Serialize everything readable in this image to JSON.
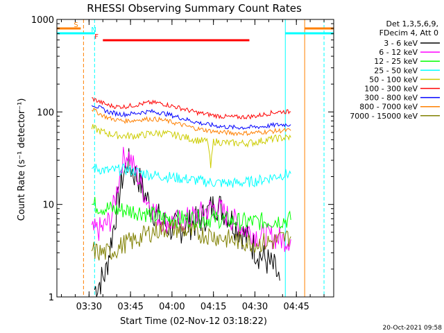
{
  "chart_data": {
    "type": "line",
    "title": "RHESSI Observing Summary Count Rates",
    "xlabel": "Start Time (02-Nov-12 03:18:22)",
    "ylabel": "Count Rate (s⁻¹ detector⁻¹)",
    "yscale": "log",
    "ylim": [
      1,
      1000
    ],
    "xlim": [
      "03:18:22",
      "04:58:30"
    ],
    "xticks": [
      "03:30",
      "03:45",
      "04:00",
      "04:15",
      "04:30",
      "04:45"
    ],
    "yticks": [
      "1",
      "10",
      "100",
      "1000"
    ],
    "legend_header": [
      "Det 1,3,5,6,9,",
      "FDecim 4, Att 0"
    ],
    "legend_position": "right",
    "grid": false,
    "series": [
      {
        "name": "3 - 6 keV",
        "color": "#000000",
        "points": [
          [
            "03:32",
            1.2
          ],
          [
            "03:36",
            1.8
          ],
          [
            "03:39",
            6
          ],
          [
            "03:42",
            19
          ],
          [
            "03:44",
            29
          ],
          [
            "03:46",
            22
          ],
          [
            "03:48",
            19
          ],
          [
            "03:50",
            13
          ],
          [
            "03:52",
            10
          ],
          [
            "03:54",
            8
          ],
          [
            "03:56",
            6.5
          ],
          [
            "03:58",
            6
          ],
          [
            "04:00",
            5.5
          ],
          [
            "04:03",
            5.5
          ],
          [
            "04:06",
            6
          ],
          [
            "04:09",
            6.5
          ],
          [
            "04:12",
            7.5
          ],
          [
            "04:14",
            9
          ],
          [
            "04:16",
            10
          ],
          [
            "04:18",
            9
          ],
          [
            "04:20",
            8
          ],
          [
            "04:22",
            6.5
          ],
          [
            "04:25",
            5
          ],
          [
            "04:28",
            4
          ],
          [
            "04:31",
            3
          ],
          [
            "04:34",
            2.5
          ],
          [
            "04:37",
            2
          ],
          [
            "04:39",
            1.5
          ]
        ]
      },
      {
        "name": "6 - 12 keV",
        "color": "#ff00ff",
        "points": [
          [
            "03:31",
            5
          ],
          [
            "03:35",
            5.5
          ],
          [
            "03:38",
            7
          ],
          [
            "03:40",
            14
          ],
          [
            "03:42",
            30
          ],
          [
            "03:44",
            36
          ],
          [
            "03:46",
            26
          ],
          [
            "03:48",
            19
          ],
          [
            "03:50",
            13
          ],
          [
            "03:52",
            10
          ],
          [
            "03:54",
            8
          ],
          [
            "03:56",
            7
          ],
          [
            "03:58",
            6.5
          ],
          [
            "04:00",
            6.5
          ],
          [
            "04:03",
            6.5
          ],
          [
            "04:06",
            7
          ],
          [
            "04:09",
            7.5
          ],
          [
            "04:12",
            8.5
          ],
          [
            "04:14",
            9
          ],
          [
            "04:16",
            9.5
          ],
          [
            "04:18",
            8.5
          ],
          [
            "04:20",
            7.5
          ],
          [
            "04:23",
            6.5
          ],
          [
            "04:26",
            5.5
          ],
          [
            "04:29",
            5
          ],
          [
            "04:32",
            4.5
          ],
          [
            "04:36",
            4.5
          ],
          [
            "04:40",
            4.2
          ],
          [
            "04:43",
            4.2
          ]
        ]
      },
      {
        "name": "12 - 25 keV",
        "color": "#00ff00",
        "points": [
          [
            "03:31",
            10
          ],
          [
            "03:34",
            9.5
          ],
          [
            "03:37",
            9
          ],
          [
            "03:40",
            8.7
          ],
          [
            "03:43",
            8.7
          ],
          [
            "03:46",
            8.5
          ],
          [
            "03:49",
            8.3
          ],
          [
            "03:52",
            7.8
          ],
          [
            "03:55",
            7.3
          ],
          [
            "03:58",
            7
          ],
          [
            "04:01",
            7
          ],
          [
            "04:04",
            7
          ],
          [
            "04:07",
            7
          ],
          [
            "04:10",
            7
          ],
          [
            "04:13",
            7
          ],
          [
            "04:16",
            7
          ],
          [
            "04:19",
            6.8
          ],
          [
            "04:22",
            6.6
          ],
          [
            "04:25",
            6.5
          ],
          [
            "04:28",
            6.5
          ],
          [
            "04:31",
            6.5
          ],
          [
            "04:34",
            6.6
          ],
          [
            "04:37",
            6.7
          ],
          [
            "04:40",
            6.8
          ],
          [
            "04:43",
            6.8
          ]
        ]
      },
      {
        "name": "25 - 50 keV",
        "color": "#00ffff",
        "points": [
          [
            "03:31",
            25
          ],
          [
            "03:34",
            24
          ],
          [
            "03:37",
            23
          ],
          [
            "03:40",
            23.5
          ],
          [
            "03:43",
            24
          ],
          [
            "03:46",
            23
          ],
          [
            "03:49",
            22
          ],
          [
            "03:52",
            21
          ],
          [
            "03:55",
            20.5
          ],
          [
            "03:58",
            20
          ],
          [
            "04:01",
            19.5
          ],
          [
            "04:04",
            19
          ],
          [
            "04:07",
            18.5
          ],
          [
            "04:10",
            18
          ],
          [
            "04:13",
            17.5
          ],
          [
            "04:16",
            17.2
          ],
          [
            "04:19",
            17
          ],
          [
            "04:22",
            17
          ],
          [
            "04:25",
            17.2
          ],
          [
            "04:28",
            17.5
          ],
          [
            "04:31",
            18
          ],
          [
            "04:34",
            19
          ],
          [
            "04:37",
            20
          ],
          [
            "04:40",
            21
          ],
          [
            "04:43",
            21.5
          ]
        ]
      },
      {
        "name": "50 - 100 keV",
        "color": "#cccc00",
        "points": [
          [
            "03:31",
            68
          ],
          [
            "03:34",
            62
          ],
          [
            "03:37",
            58
          ],
          [
            "03:40",
            56
          ],
          [
            "03:43",
            55
          ],
          [
            "03:46",
            55
          ],
          [
            "03:49",
            56
          ],
          [
            "03:52",
            58
          ],
          [
            "03:55",
            59
          ],
          [
            "03:58",
            58
          ],
          [
            "04:01",
            56
          ],
          [
            "04:04",
            54
          ],
          [
            "04:07",
            51
          ],
          [
            "04:10",
            49
          ],
          [
            "04:13",
            48
          ],
          [
            "04:14",
            25
          ],
          [
            "04:15",
            48
          ],
          [
            "04:18",
            47
          ],
          [
            "04:21",
            46
          ],
          [
            "04:24",
            46
          ],
          [
            "04:27",
            46
          ],
          [
            "04:30",
            47
          ],
          [
            "04:33",
            49
          ],
          [
            "04:36",
            51
          ],
          [
            "04:39",
            52
          ],
          [
            "04:43",
            53
          ]
        ]
      },
      {
        "name": "100 - 300 keV",
        "color": "#ff0000",
        "points": [
          [
            "03:31",
            140
          ],
          [
            "03:34",
            128
          ],
          [
            "03:37",
            118
          ],
          [
            "03:40",
            114
          ],
          [
            "03:43",
            114
          ],
          [
            "03:46",
            118
          ],
          [
            "03:49",
            122
          ],
          [
            "03:52",
            126
          ],
          [
            "03:55",
            125
          ],
          [
            "03:58",
            120
          ],
          [
            "04:01",
            114
          ],
          [
            "04:04",
            108
          ],
          [
            "04:07",
            102
          ],
          [
            "04:10",
            97
          ],
          [
            "04:13",
            94
          ],
          [
            "04:16",
            91
          ],
          [
            "04:19",
            89
          ],
          [
            "04:22",
            88
          ],
          [
            "04:25",
            88
          ],
          [
            "04:28",
            89
          ],
          [
            "04:31",
            91
          ],
          [
            "04:34",
            95
          ],
          [
            "04:37",
            99
          ],
          [
            "04:40",
            101
          ],
          [
            "04:43",
            100
          ]
        ]
      },
      {
        "name": "300 - 800 keV",
        "color": "#0000ff",
        "points": [
          [
            "03:31",
            122
          ],
          [
            "03:34",
            110
          ],
          [
            "03:37",
            100
          ],
          [
            "03:40",
            96
          ],
          [
            "03:43",
            94
          ],
          [
            "03:46",
            96
          ],
          [
            "03:49",
            99
          ],
          [
            "03:52",
            101
          ],
          [
            "03:55",
            99
          ],
          [
            "03:58",
            95
          ],
          [
            "04:01",
            90
          ],
          [
            "04:04",
            85
          ],
          [
            "04:07",
            80
          ],
          [
            "04:10",
            76
          ],
          [
            "04:13",
            73
          ],
          [
            "04:16",
            71
          ],
          [
            "04:19",
            69
          ],
          [
            "04:22",
            68
          ],
          [
            "04:25",
            68
          ],
          [
            "04:28",
            68
          ],
          [
            "04:31",
            69
          ],
          [
            "04:34",
            70
          ],
          [
            "04:37",
            72
          ],
          [
            "04:40",
            73
          ],
          [
            "04:43",
            73
          ]
        ]
      },
      {
        "name": "800 - 7000 keV",
        "color": "#ff8000",
        "points": [
          [
            "03:31",
            108
          ],
          [
            "03:34",
            95
          ],
          [
            "03:37",
            86
          ],
          [
            "03:40",
            82
          ],
          [
            "03:43",
            80
          ],
          [
            "03:46",
            81
          ],
          [
            "03:49",
            83
          ],
          [
            "03:52",
            84
          ],
          [
            "03:55",
            83
          ],
          [
            "03:58",
            80
          ],
          [
            "04:01",
            76
          ],
          [
            "04:04",
            72
          ],
          [
            "04:07",
            68
          ],
          [
            "04:10",
            65
          ],
          [
            "04:13",
            63
          ],
          [
            "04:16",
            61
          ],
          [
            "04:19",
            60
          ],
          [
            "04:22",
            59
          ],
          [
            "04:25",
            59
          ],
          [
            "04:28",
            59
          ],
          [
            "04:31",
            60
          ],
          [
            "04:34",
            61
          ],
          [
            "04:37",
            62
          ],
          [
            "04:40",
            63
          ],
          [
            "04:43",
            63
          ]
        ]
      },
      {
        "name": "7000 - 15000 keV",
        "color": "#808000",
        "points": [
          [
            "03:31",
            3.2
          ],
          [
            "03:34",
            3
          ],
          [
            "03:37",
            3
          ],
          [
            "03:40",
            3.3
          ],
          [
            "03:43",
            3.8
          ],
          [
            "03:46",
            4
          ],
          [
            "03:49",
            4.5
          ],
          [
            "03:52",
            5
          ],
          [
            "03:55",
            5.3
          ],
          [
            "03:58",
            5.5
          ],
          [
            "04:01",
            5.5
          ],
          [
            "04:04",
            5.3
          ],
          [
            "04:07",
            5
          ],
          [
            "04:10",
            4.8
          ],
          [
            "04:13",
            4.7
          ],
          [
            "04:16",
            4.5
          ],
          [
            "04:19",
            4.3
          ],
          [
            "04:22",
            4.1
          ],
          [
            "04:25",
            4
          ],
          [
            "04:28",
            3.9
          ],
          [
            "04:31",
            3.8
          ],
          [
            "04:34",
            3.9
          ],
          [
            "04:37",
            4
          ],
          [
            "04:40",
            4.3
          ],
          [
            "04:43",
            4.5
          ]
        ]
      }
    ],
    "flag_bars": [
      {
        "label": "S",
        "color": "#ff8000",
        "segments": [
          [
            "03:18:22",
            "03:27"
          ],
          [
            "04:48",
            "04:58:30"
          ]
        ],
        "level": "top"
      },
      {
        "label": "N",
        "color": "#00ffff",
        "segments": [
          [
            "03:18:22",
            "03:32"
          ],
          [
            "04:41",
            "04:58:30"
          ]
        ],
        "level": "second"
      },
      {
        "label": "F",
        "color": "#ff0000",
        "segments": [
          [
            "03:35",
            "04:28"
          ]
        ],
        "level": "third"
      }
    ],
    "vertical_markers": [
      {
        "time": "03:28",
        "color": "#ff8000",
        "style": "dashed"
      },
      {
        "time": "03:32",
        "color": "#00ffff",
        "style": "dashed"
      },
      {
        "time": "04:41",
        "color": "#00ffff",
        "style": "solid"
      },
      {
        "time": "04:48",
        "color": "#ff8000",
        "style": "solid"
      },
      {
        "time": "04:55",
        "color": "#00ffff",
        "style": "dashed"
      }
    ]
  },
  "footer_timestamp": "20-Oct-2021 09:58"
}
